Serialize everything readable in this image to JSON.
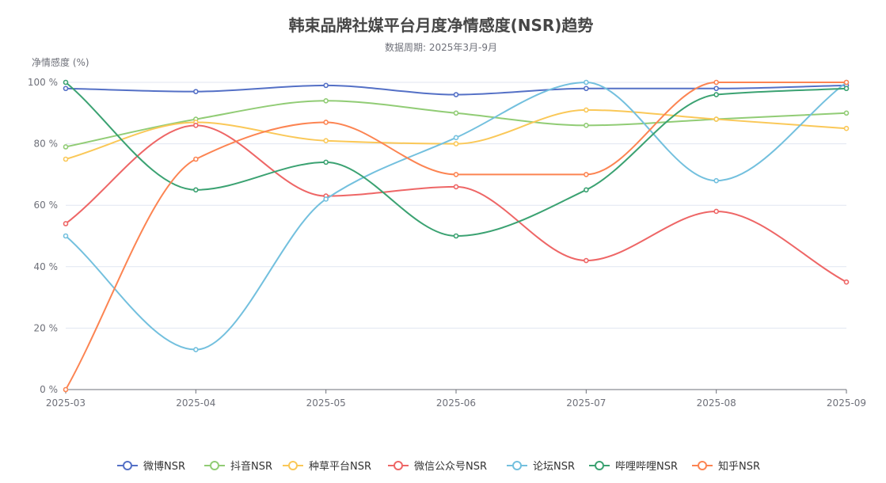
{
  "chart_data": {
    "type": "line",
    "title": "韩束品牌社媒平台月度净情感度(NSR)趋势",
    "subtitle": "数据周期: 2025年3月-9月",
    "ylabel": "净情感度 (%)",
    "xlabel": "",
    "ylim": [
      0,
      100
    ],
    "yticks": [
      0,
      20,
      40,
      60,
      80,
      100
    ],
    "ytick_suffix": " %",
    "grid": true,
    "smooth": true,
    "legend_position": "bottom",
    "categories": [
      "2025-03",
      "2025-04",
      "2025-05",
      "2025-06",
      "2025-07",
      "2025-08",
      "2025-09"
    ],
    "series": [
      {
        "name": "微博NSR",
        "color": "#5470c6",
        "values": [
          98,
          97,
          99,
          96,
          98,
          98,
          99
        ]
      },
      {
        "name": "抖音NSR",
        "color": "#91cc75",
        "values": [
          79,
          88,
          94,
          90,
          86,
          88,
          90
        ]
      },
      {
        "name": "种草平台NSR",
        "color": "#fac858",
        "values": [
          75,
          87,
          81,
          80,
          91,
          88,
          85
        ]
      },
      {
        "name": "微信公众号NSR",
        "color": "#ee6666",
        "values": [
          54,
          86,
          63,
          66,
          42,
          58,
          35
        ]
      },
      {
        "name": "论坛NSR",
        "color": "#73c0de",
        "values": [
          50,
          13,
          62,
          82,
          100,
          68,
          100
        ]
      },
      {
        "name": "哔哩哔哩NSR",
        "color": "#3ba272",
        "values": [
          100,
          65,
          74,
          50,
          65,
          96,
          98
        ]
      },
      {
        "name": "知乎NSR",
        "color": "#fc8452",
        "values": [
          0,
          75,
          87,
          70,
          70,
          100,
          100
        ]
      }
    ]
  }
}
